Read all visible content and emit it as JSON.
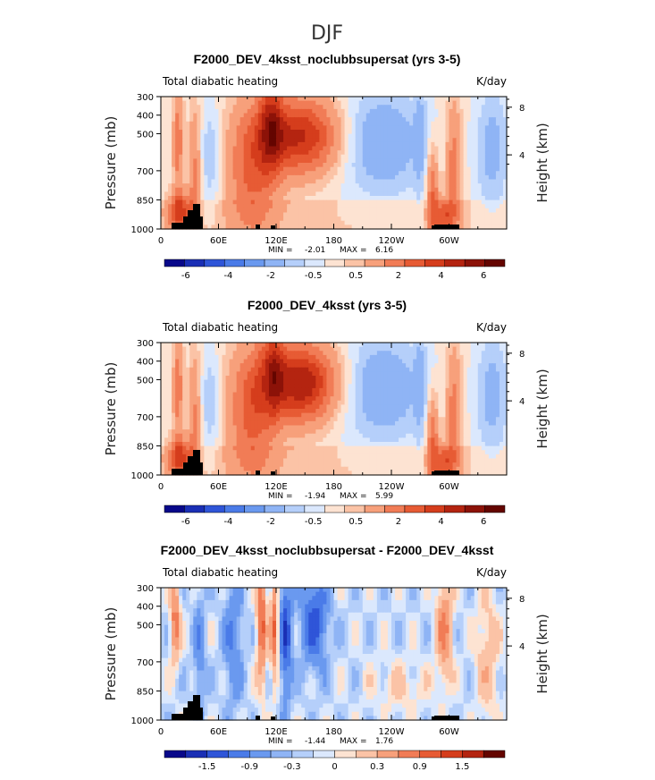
{
  "figure_title": "DJF",
  "chart_data": [
    {
      "type": "heatmap",
      "title": "F2000_DEV_4ksst_noclubbsupersat (yrs 3-5)",
      "left_label": "Total diabatic heating",
      "units": "K/day",
      "ylabel": "Pressure (mb)",
      "y2label": "Height (km)",
      "x_ticks": [
        "0",
        "60E",
        "120E",
        "180",
        "120W",
        "60W"
      ],
      "y_ticks": [
        "300",
        "400",
        "500",
        "700",
        "850",
        "1000"
      ],
      "y2_ticks": [
        "8",
        "4"
      ],
      "stats": {
        "min_label": "MIN =",
        "min": "-2.01",
        "max_label": "MAX =",
        "max": "6.16"
      },
      "colorbar": {
        "labels": [
          "-6",
          "-4",
          "-2",
          "-0.5",
          "0.5",
          "2",
          "4",
          "6"
        ],
        "colors": [
          "#08088a",
          "#1a2fb5",
          "#2f55d8",
          "#4a7be8",
          "#6a99ef",
          "#8fb4f5",
          "#b5cffa",
          "#dbe8fd",
          "#fde3d2",
          "#fbc3a6",
          "#f7a07b",
          "#f17c56",
          "#e75b34",
          "#d53d1c",
          "#b42410",
          "#8c1208",
          "#640500"
        ]
      },
      "xlim": [
        0,
        360
      ],
      "ylim": [
        1000,
        300
      ]
    },
    {
      "type": "heatmap",
      "title": "F2000_DEV_4ksst (yrs 3-5)",
      "left_label": "Total diabatic heating",
      "units": "K/day",
      "ylabel": "Pressure (mb)",
      "y2label": "Height (km)",
      "x_ticks": [
        "0",
        "60E",
        "120E",
        "180",
        "120W",
        "60W"
      ],
      "y_ticks": [
        "300",
        "400",
        "500",
        "700",
        "850",
        "1000"
      ],
      "y2_ticks": [
        "8",
        "4"
      ],
      "stats": {
        "min_label": "MIN =",
        "min": "-1.94",
        "max_label": "MAX =",
        "max": "5.99"
      },
      "colorbar": {
        "labels": [
          "-6",
          "-4",
          "-2",
          "-0.5",
          "0.5",
          "2",
          "4",
          "6"
        ],
        "colors": [
          "#08088a",
          "#1a2fb5",
          "#2f55d8",
          "#4a7be8",
          "#6a99ef",
          "#8fb4f5",
          "#b5cffa",
          "#dbe8fd",
          "#fde3d2",
          "#fbc3a6",
          "#f7a07b",
          "#f17c56",
          "#e75b34",
          "#d53d1c",
          "#b42410",
          "#8c1208",
          "#640500"
        ]
      },
      "xlim": [
        0,
        360
      ],
      "ylim": [
        1000,
        300
      ]
    },
    {
      "type": "heatmap",
      "title": "F2000_DEV_4ksst_noclubbsupersat - F2000_DEV_4ksst",
      "left_label": "Total diabatic heating",
      "units": "K/day",
      "ylabel": "Pressure (mb)",
      "y2label": "Height (km)",
      "x_ticks": [
        "0",
        "60E",
        "120E",
        "180",
        "120W",
        "60W"
      ],
      "y_ticks": [
        "300",
        "400",
        "500",
        "700",
        "850",
        "1000"
      ],
      "y2_ticks": [
        "8",
        "4"
      ],
      "stats": {
        "min_label": "MIN =",
        "min": "-1.44",
        "max_label": "MAX =",
        "max": "1.76"
      },
      "colorbar": {
        "labels": [
          "-1.5",
          "-0.9",
          "-0.3",
          "0",
          "0.3",
          "0.9",
          "1.5"
        ],
        "colors": [
          "#08088a",
          "#1a2fb5",
          "#2f55d8",
          "#4a7be8",
          "#6a99ef",
          "#8fb4f5",
          "#b5cffa",
          "#dbe8fd",
          "#fde3d2",
          "#fbc3a6",
          "#f7a07b",
          "#f17c56",
          "#e75b34",
          "#d53d1c",
          "#b42410",
          "#640500"
        ]
      },
      "xlim": [
        0,
        360
      ],
      "ylim": [
        1000,
        300
      ]
    }
  ]
}
